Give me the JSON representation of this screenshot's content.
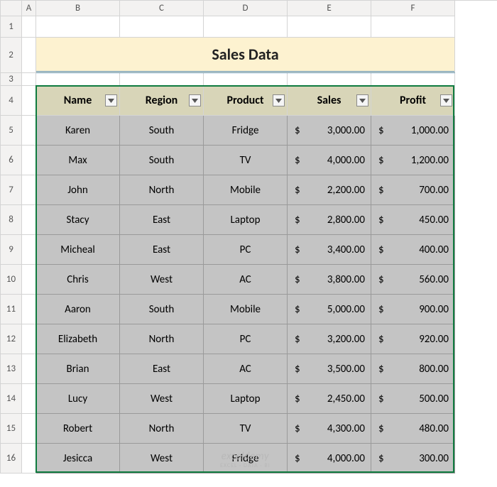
{
  "cols": [
    "A",
    "B",
    "C",
    "D",
    "E",
    "F"
  ],
  "rows": [
    "1",
    "2",
    "3",
    "4",
    "5",
    "6",
    "7",
    "8",
    "9",
    "10",
    "11",
    "12",
    "13",
    "14",
    "15",
    "16"
  ],
  "title": "Sales Data",
  "headers": {
    "name": "Name",
    "region": "Region",
    "product": "Product",
    "sales": "Sales",
    "profit": "Profit"
  },
  "currency": "$",
  "data": [
    {
      "name": "Karen",
      "region": "South",
      "product": "Fridge",
      "sales": "3,000.00",
      "profit": "1,000.00"
    },
    {
      "name": "Max",
      "region": "South",
      "product": "TV",
      "sales": "4,000.00",
      "profit": "1,200.00"
    },
    {
      "name": "John",
      "region": "North",
      "product": "Mobile",
      "sales": "2,200.00",
      "profit": "700.00"
    },
    {
      "name": "Stacy",
      "region": "East",
      "product": "Laptop",
      "sales": "2,800.00",
      "profit": "450.00"
    },
    {
      "name": "Micheal",
      "region": "East",
      "product": "PC",
      "sales": "3,400.00",
      "profit": "400.00"
    },
    {
      "name": "Chris",
      "region": "West",
      "product": "AC",
      "sales": "3,800.00",
      "profit": "560.00"
    },
    {
      "name": "Aaron",
      "region": "South",
      "product": "Mobile",
      "sales": "5,000.00",
      "profit": "900.00"
    },
    {
      "name": "Elizabeth",
      "region": "North",
      "product": "PC",
      "sales": "3,200.00",
      "profit": "920.00"
    },
    {
      "name": "Brian",
      "region": "East",
      "product": "AC",
      "sales": "3,500.00",
      "profit": "800.00"
    },
    {
      "name": "Lucy",
      "region": "West",
      "product": "Laptop",
      "sales": "2,450.00",
      "profit": "500.00"
    },
    {
      "name": "Robert",
      "region": "North",
      "product": "TV",
      "sales": "4,300.00",
      "profit": "480.00"
    },
    {
      "name": "Jesicca",
      "region": "West",
      "product": "Fridge",
      "sales": "4,000.00",
      "profit": "300.00"
    }
  ],
  "colors": {
    "title_bg": "#fdf2d0",
    "header_bg": "#d8d5b8",
    "data_bg": "#c4c4c4",
    "selection": "#0f7b3f",
    "title_underline": "#5b8fb9",
    "grid_hdr_bg": "#f3f2f1"
  },
  "watermark": {
    "line1": "exceldemy",
    "line2": "EXCEL · DATA · BI"
  }
}
